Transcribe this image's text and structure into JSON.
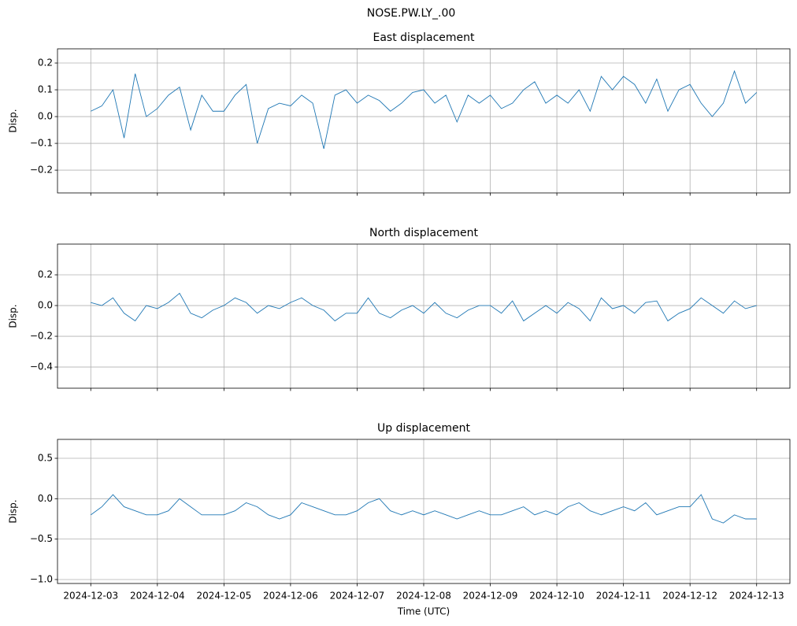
{
  "title": "NOSE.PW.LY_.00",
  "chart_data": [
    {
      "type": "line",
      "title": "East displacement",
      "ylabel": "Disp.",
      "x": [
        "2024-12-03T00:00",
        "2024-12-03T04:00",
        "2024-12-03T08:00",
        "2024-12-03T12:00",
        "2024-12-03T16:00",
        "2024-12-03T20:00",
        "2024-12-04T00:00",
        "2024-12-04T04:00",
        "2024-12-04T08:00",
        "2024-12-04T12:00",
        "2024-12-04T16:00",
        "2024-12-04T20:00",
        "2024-12-05T00:00",
        "2024-12-05T04:00",
        "2024-12-05T08:00",
        "2024-12-05T12:00",
        "2024-12-05T16:00",
        "2024-12-05T20:00",
        "2024-12-06T00:00",
        "2024-12-06T04:00",
        "2024-12-06T08:00",
        "2024-12-06T12:00",
        "2024-12-06T16:00",
        "2024-12-06T20:00",
        "2024-12-07T00:00",
        "2024-12-07T04:00",
        "2024-12-07T08:00",
        "2024-12-07T12:00",
        "2024-12-07T16:00",
        "2024-12-07T20:00",
        "2024-12-08T00:00",
        "2024-12-08T04:00",
        "2024-12-08T08:00",
        "2024-12-08T12:00",
        "2024-12-08T16:00",
        "2024-12-08T20:00",
        "2024-12-09T00:00",
        "2024-12-09T04:00",
        "2024-12-09T08:00",
        "2024-12-09T12:00",
        "2024-12-09T16:00",
        "2024-12-09T20:00",
        "2024-12-10T00:00",
        "2024-12-10T04:00",
        "2024-12-10T08:00",
        "2024-12-10T12:00",
        "2024-12-10T16:00",
        "2024-12-10T20:00",
        "2024-12-11T00:00",
        "2024-12-11T04:00",
        "2024-12-11T08:00",
        "2024-12-11T12:00",
        "2024-12-11T16:00",
        "2024-12-11T20:00",
        "2024-12-12T00:00",
        "2024-12-12T04:00",
        "2024-12-12T08:00",
        "2024-12-12T12:00",
        "2024-12-12T16:00",
        "2024-12-12T20:00",
        "2024-12-13T00:00"
      ],
      "series": [
        {
          "color": "#1f77b4",
          "values": [
            0.02,
            0.04,
            0.1,
            -0.08,
            0.16,
            0.0,
            0.03,
            0.08,
            0.11,
            -0.05,
            0.08,
            0.02,
            0.02,
            0.08,
            0.12,
            -0.1,
            0.03,
            0.05,
            0.04,
            0.08,
            0.05,
            -0.12,
            0.08,
            0.1,
            0.05,
            0.08,
            0.06,
            0.02,
            0.05,
            0.09,
            0.1,
            0.05,
            0.08,
            -0.02,
            0.08,
            0.05,
            0.08,
            0.03,
            0.05,
            0.1,
            0.13,
            0.05,
            0.08,
            0.05,
            0.1,
            0.02,
            0.15,
            0.1,
            0.15,
            0.12,
            0.05,
            0.14,
            0.02,
            0.1,
            0.12,
            0.05,
            0.0,
            0.05,
            0.17,
            0.05,
            0.09
          ]
        }
      ],
      "xlim": [
        "2024-12-02T12:00",
        "2024-12-13T12:00"
      ],
      "xticks": [
        "2024-12-03",
        "2024-12-04",
        "2024-12-05",
        "2024-12-06",
        "2024-12-07",
        "2024-12-08",
        "2024-12-09",
        "2024-12-10",
        "2024-12-11",
        "2024-12-12",
        "2024-12-13"
      ],
      "ylim": [
        -0.285,
        0.253
      ],
      "yticks": [
        {
          "value": -0.2,
          "label": "−0.2"
        },
        {
          "value": -0.1,
          "label": "−0.1"
        },
        {
          "value": 0,
          "label": "0.0"
        },
        {
          "value": 0.1,
          "label": "0.1"
        },
        {
          "value": 0.2,
          "label": "0.2"
        }
      ],
      "grid": true
    },
    {
      "type": "line",
      "title": "North displacement",
      "ylabel": "Disp.",
      "x": [
        "2024-12-03T00:00",
        "2024-12-03T04:00",
        "2024-12-03T08:00",
        "2024-12-03T12:00",
        "2024-12-03T16:00",
        "2024-12-03T20:00",
        "2024-12-04T00:00",
        "2024-12-04T04:00",
        "2024-12-04T08:00",
        "2024-12-04T12:00",
        "2024-12-04T16:00",
        "2024-12-04T20:00",
        "2024-12-05T00:00",
        "2024-12-05T04:00",
        "2024-12-05T08:00",
        "2024-12-05T12:00",
        "2024-12-05T16:00",
        "2024-12-05T20:00",
        "2024-12-06T00:00",
        "2024-12-06T04:00",
        "2024-12-06T08:00",
        "2024-12-06T12:00",
        "2024-12-06T16:00",
        "2024-12-06T20:00",
        "2024-12-07T00:00",
        "2024-12-07T04:00",
        "2024-12-07T08:00",
        "2024-12-07T12:00",
        "2024-12-07T16:00",
        "2024-12-07T20:00",
        "2024-12-08T00:00",
        "2024-12-08T04:00",
        "2024-12-08T08:00",
        "2024-12-08T12:00",
        "2024-12-08T16:00",
        "2024-12-08T20:00",
        "2024-12-09T00:00",
        "2024-12-09T04:00",
        "2024-12-09T08:00",
        "2024-12-09T12:00",
        "2024-12-09T16:00",
        "2024-12-09T20:00",
        "2024-12-10T00:00",
        "2024-12-10T04:00",
        "2024-12-10T08:00",
        "2024-12-10T12:00",
        "2024-12-10T16:00",
        "2024-12-10T20:00",
        "2024-12-11T00:00",
        "2024-12-11T04:00",
        "2024-12-11T08:00",
        "2024-12-11T12:00",
        "2024-12-11T16:00",
        "2024-12-11T20:00",
        "2024-12-12T00:00",
        "2024-12-12T04:00",
        "2024-12-12T08:00",
        "2024-12-12T12:00",
        "2024-12-12T16:00",
        "2024-12-12T20:00",
        "2024-12-13T00:00"
      ],
      "series": [
        {
          "color": "#1f77b4",
          "values": [
            0.02,
            0.0,
            0.05,
            -0.05,
            -0.1,
            0.0,
            -0.02,
            0.02,
            0.08,
            -0.05,
            -0.08,
            -0.03,
            0.0,
            0.05,
            0.02,
            -0.05,
            0.0,
            -0.02,
            0.02,
            0.05,
            0.0,
            -0.03,
            -0.1,
            -0.05,
            -0.05,
            0.05,
            -0.05,
            -0.08,
            -0.03,
            0.0,
            -0.05,
            0.02,
            -0.05,
            -0.08,
            -0.03,
            0.0,
            0.0,
            -0.05,
            0.03,
            -0.1,
            -0.05,
            0.0,
            -0.05,
            0.02,
            -0.02,
            -0.1,
            0.05,
            -0.02,
            0.0,
            -0.05,
            0.02,
            0.03,
            -0.1,
            -0.05,
            -0.02,
            0.05,
            0.0,
            -0.05,
            0.03,
            -0.02,
            0.0
          ]
        }
      ],
      "xlim": [
        "2024-12-02T12:00",
        "2024-12-13T12:00"
      ],
      "xticks": [
        "2024-12-03",
        "2024-12-04",
        "2024-12-05",
        "2024-12-06",
        "2024-12-07",
        "2024-12-08",
        "2024-12-09",
        "2024-12-10",
        "2024-12-11",
        "2024-12-12",
        "2024-12-13"
      ],
      "ylim": [
        -0.538,
        0.4
      ],
      "yticks": [
        {
          "value": -0.4,
          "label": "−0.4"
        },
        {
          "value": -0.2,
          "label": "−0.2"
        },
        {
          "value": 0,
          "label": "0.0"
        },
        {
          "value": 0.2,
          "label": "0.2"
        }
      ],
      "grid": true
    },
    {
      "type": "line",
      "title": "Up displacement",
      "ylabel": "Disp.",
      "xlabel": "Time (UTC)",
      "x": [
        "2024-12-03T00:00",
        "2024-12-03T04:00",
        "2024-12-03T08:00",
        "2024-12-03T12:00",
        "2024-12-03T16:00",
        "2024-12-03T20:00",
        "2024-12-04T00:00",
        "2024-12-04T04:00",
        "2024-12-04T08:00",
        "2024-12-04T12:00",
        "2024-12-04T16:00",
        "2024-12-04T20:00",
        "2024-12-05T00:00",
        "2024-12-05T04:00",
        "2024-12-05T08:00",
        "2024-12-05T12:00",
        "2024-12-05T16:00",
        "2024-12-05T20:00",
        "2024-12-06T00:00",
        "2024-12-06T04:00",
        "2024-12-06T08:00",
        "2024-12-06T12:00",
        "2024-12-06T16:00",
        "2024-12-06T20:00",
        "2024-12-07T00:00",
        "2024-12-07T04:00",
        "2024-12-07T08:00",
        "2024-12-07T12:00",
        "2024-12-07T16:00",
        "2024-12-07T20:00",
        "2024-12-08T00:00",
        "2024-12-08T04:00",
        "2024-12-08T08:00",
        "2024-12-08T12:00",
        "2024-12-08T16:00",
        "2024-12-08T20:00",
        "2024-12-09T00:00",
        "2024-12-09T04:00",
        "2024-12-09T08:00",
        "2024-12-09T12:00",
        "2024-12-09T16:00",
        "2024-12-09T20:00",
        "2024-12-10T00:00",
        "2024-12-10T04:00",
        "2024-12-10T08:00",
        "2024-12-10T12:00",
        "2024-12-10T16:00",
        "2024-12-10T20:00",
        "2024-12-11T00:00",
        "2024-12-11T04:00",
        "2024-12-11T08:00",
        "2024-12-11T12:00",
        "2024-12-11T16:00",
        "2024-12-11T20:00",
        "2024-12-12T00:00",
        "2024-12-12T04:00",
        "2024-12-12T08:00",
        "2024-12-12T12:00",
        "2024-12-12T16:00",
        "2024-12-12T20:00",
        "2024-12-13T00:00"
      ],
      "series": [
        {
          "color": "#1f77b4",
          "values": [
            -0.2,
            -0.1,
            0.05,
            -0.1,
            -0.15,
            -0.2,
            -0.2,
            -0.15,
            0.0,
            -0.1,
            -0.2,
            -0.2,
            -0.2,
            -0.15,
            -0.05,
            -0.1,
            -0.2,
            -0.25,
            -0.2,
            -0.05,
            -0.1,
            -0.15,
            -0.2,
            -0.2,
            -0.15,
            -0.05,
            0.0,
            -0.15,
            -0.2,
            -0.15,
            -0.2,
            -0.15,
            -0.2,
            -0.25,
            -0.2,
            -0.15,
            -0.2,
            -0.2,
            -0.15,
            -0.1,
            -0.2,
            -0.15,
            -0.2,
            -0.1,
            -0.05,
            -0.15,
            -0.2,
            -0.15,
            -0.1,
            -0.15,
            -0.05,
            -0.2,
            -0.15,
            -0.1,
            -0.1,
            0.05,
            -0.25,
            -0.3,
            -0.2,
            -0.25,
            -0.25
          ]
        }
      ],
      "xlim": [
        "2024-12-02T12:00",
        "2024-12-13T12:00"
      ],
      "xticks": [
        "2024-12-03",
        "2024-12-04",
        "2024-12-05",
        "2024-12-06",
        "2024-12-07",
        "2024-12-08",
        "2024-12-09",
        "2024-12-10",
        "2024-12-11",
        "2024-12-12",
        "2024-12-13"
      ],
      "ylim": [
        -1.049,
        0.734
      ],
      "yticks": [
        {
          "value": -1.0,
          "label": "−1.0"
        },
        {
          "value": -0.5,
          "label": "−0.5"
        },
        {
          "value": 0,
          "label": "0.0"
        },
        {
          "value": 0.5,
          "label": "0.5"
        }
      ],
      "grid": true
    }
  ]
}
